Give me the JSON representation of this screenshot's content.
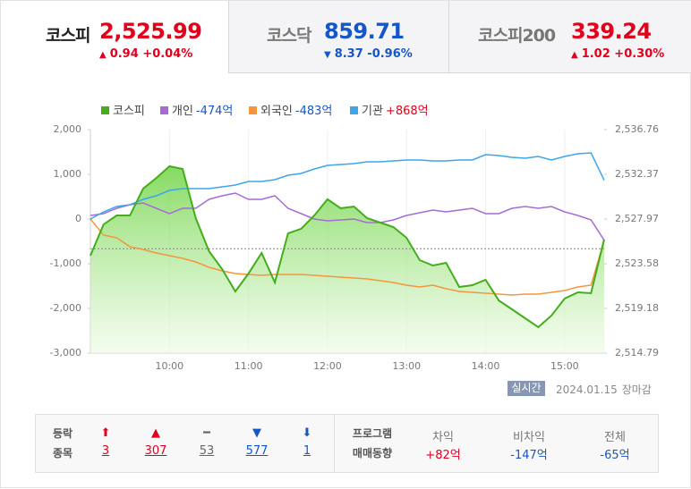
{
  "tabs": [
    {
      "name": "코스피",
      "value": "2,525.99",
      "arrow": "▲",
      "change": "0.94 +0.04%",
      "color": "#e0001b",
      "active": true
    },
    {
      "name": "코스닥",
      "value": "859.71",
      "arrow": "▼",
      "change": "8.37 -0.96%",
      "color": "#1556c8",
      "active": false
    },
    {
      "name": "코스피200",
      "value": "339.24",
      "arrow": "▲",
      "change": "1.02 +0.30%",
      "color": "#e0001b",
      "active": false
    }
  ],
  "chart_data": {
    "type": "line",
    "x": [
      540,
      550,
      560,
      570,
      580,
      590,
      600,
      610,
      620,
      630,
      640,
      650,
      660,
      670,
      680,
      690,
      700,
      710,
      720,
      730,
      740,
      750,
      760,
      770,
      780,
      790,
      800,
      810,
      820,
      830,
      840,
      850,
      860,
      870,
      880,
      890,
      900,
      910,
      920,
      930
    ],
    "xlim": [
      540,
      930
    ],
    "xticks": [
      {
        "value": 600,
        "label": "10:00"
      },
      {
        "value": 660,
        "label": "11:00"
      },
      {
        "value": 720,
        "label": "12:00"
      },
      {
        "value": 780,
        "label": "13:00"
      },
      {
        "value": 840,
        "label": "14:00"
      },
      {
        "value": 900,
        "label": "15:00"
      }
    ],
    "ylim": [
      -3000,
      2000
    ],
    "yticks": [
      {
        "value": 2000,
        "label": "2,000"
      },
      {
        "value": 1000,
        "label": "1,000"
      },
      0,
      {
        "value": -1000,
        "label": "-1,000"
      },
      {
        "value": -2000,
        "label": "-2,000"
      },
      {
        "value": -3000,
        "label": "-3,000"
      }
    ],
    "y2lim": [
      2514.79,
      2536.76
    ],
    "y2ticks": [
      {
        "value": 2536.76,
        "label": "2,536.76"
      },
      {
        "value": 2532.37,
        "label": "2,532.37"
      },
      {
        "value": 2527.97,
        "label": "2,527.97"
      },
      {
        "value": 2523.58,
        "label": "2,523.58"
      },
      {
        "value": 2519.18,
        "label": "2,519.18"
      },
      {
        "value": 2514.79,
        "label": "2,514.79"
      }
    ],
    "reference_line": {
      "value": 2525.05,
      "axis": "y2"
    },
    "series": [
      {
        "name": "코스피",
        "color": "#45ad1c",
        "axis": "y2",
        "area": true,
        "values": [
          2524.37,
          2527.44,
          2528.32,
          2528.32,
          2530.96,
          2532.01,
          2533.16,
          2532.89,
          2528.06,
          2524.81,
          2523.05,
          2520.85,
          2522.61,
          2524.63,
          2521.73,
          2526.57,
          2527.01,
          2528.32,
          2529.91,
          2529.03,
          2529.2,
          2528.06,
          2527.62,
          2527.18,
          2526.13,
          2523.93,
          2523.4,
          2523.67,
          2521.29,
          2521.47,
          2522.0,
          2519.97,
          2519.1,
          2518.22,
          2517.34,
          2518.48,
          2520.15,
          2520.77,
          2520.68,
          2525.99
        ]
      },
      {
        "name": "개인",
        "legend_label": "-474억",
        "legend_label_color": "#1556c8",
        "color": "#a66cd4",
        "values": [
          80,
          120,
          240,
          320,
          360,
          240,
          120,
          240,
          240,
          440,
          520,
          580,
          440,
          440,
          520,
          240,
          120,
          0,
          -40,
          -20,
          0,
          -80,
          -80,
          -20,
          80,
          140,
          200,
          160,
          200,
          240,
          120,
          120,
          240,
          280,
          240,
          280,
          160,
          80,
          -20,
          -474
        ]
      },
      {
        "name": "외국인",
        "legend_label": "-483억",
        "legend_label_color": "#1556c8",
        "color": "#f5963c",
        "values": [
          0,
          -360,
          -420,
          -620,
          -680,
          -760,
          -820,
          -880,
          -960,
          -1080,
          -1160,
          -1220,
          -1240,
          -1260,
          -1240,
          -1240,
          -1240,
          -1260,
          -1280,
          -1300,
          -1320,
          -1340,
          -1380,
          -1420,
          -1480,
          -1520,
          -1480,
          -1560,
          -1620,
          -1640,
          -1660,
          -1680,
          -1700,
          -1680,
          -1680,
          -1640,
          -1600,
          -1520,
          -1480,
          -483
        ]
      },
      {
        "name": "기관",
        "legend_label": "+868억",
        "legend_label_color": "#e0001b",
        "color": "#3da5ea",
        "values": [
          0,
          160,
          280,
          320,
          440,
          520,
          640,
          680,
          680,
          680,
          720,
          760,
          840,
          840,
          880,
          980,
          1020,
          1120,
          1200,
          1220,
          1240,
          1280,
          1280,
          1300,
          1320,
          1320,
          1300,
          1300,
          1320,
          1320,
          1440,
          1420,
          1380,
          1360,
          1400,
          1320,
          1400,
          1460,
          1480,
          868
        ]
      }
    ]
  },
  "status": {
    "badge": "실시간",
    "date": "2024.01.15",
    "session": "장마감"
  },
  "breadth": {
    "title_lines": [
      "등락",
      "종목"
    ],
    "items": [
      {
        "symbol": "⬆",
        "count": 3,
        "color": "#e0001b"
      },
      {
        "symbol": "▲",
        "count": 307,
        "color": "#e0001b"
      },
      {
        "symbol": "━",
        "count": 53,
        "color": "#666666"
      },
      {
        "symbol": "▼",
        "count": 577,
        "color": "#1556c8"
      },
      {
        "symbol": "⬇",
        "count": 1,
        "color": "#1556c8"
      }
    ]
  },
  "program": {
    "title_lines": [
      "프로그램",
      "매매동향"
    ],
    "items": [
      {
        "label": "차익",
        "value": "+82억",
        "color": "#e0001b"
      },
      {
        "label": "비차익",
        "value": "-147억",
        "color": "#1556c8"
      },
      {
        "label": "전체",
        "value": "-65억",
        "color": "#1556c8"
      }
    ]
  }
}
